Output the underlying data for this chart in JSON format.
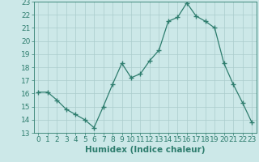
{
  "x": [
    0,
    1,
    2,
    3,
    4,
    5,
    6,
    7,
    8,
    9,
    10,
    11,
    12,
    13,
    14,
    15,
    16,
    17,
    18,
    19,
    20,
    21,
    22,
    23
  ],
  "y": [
    16.1,
    16.1,
    15.5,
    14.8,
    14.4,
    14.0,
    13.4,
    15.0,
    16.7,
    18.3,
    17.2,
    17.5,
    18.5,
    19.3,
    21.5,
    21.8,
    22.9,
    21.9,
    21.5,
    21.0,
    18.3,
    16.7,
    15.3,
    13.8
  ],
  "line_color": "#2e7d6e",
  "marker": "+",
  "marker_size": 4,
  "bg_color": "#cce8e8",
  "grid_color": "#aacccc",
  "xlabel": "Humidex (Indice chaleur)",
  "xlabel_fontsize": 7.5,
  "tick_fontsize": 6.5,
  "ylim": [
    13,
    23
  ],
  "xlim": [
    -0.5,
    23.5
  ],
  "yticks": [
    13,
    14,
    15,
    16,
    17,
    18,
    19,
    20,
    21,
    22,
    23
  ],
  "xticks": [
    0,
    1,
    2,
    3,
    4,
    5,
    6,
    7,
    8,
    9,
    10,
    11,
    12,
    13,
    14,
    15,
    16,
    17,
    18,
    19,
    20,
    21,
    22,
    23
  ]
}
